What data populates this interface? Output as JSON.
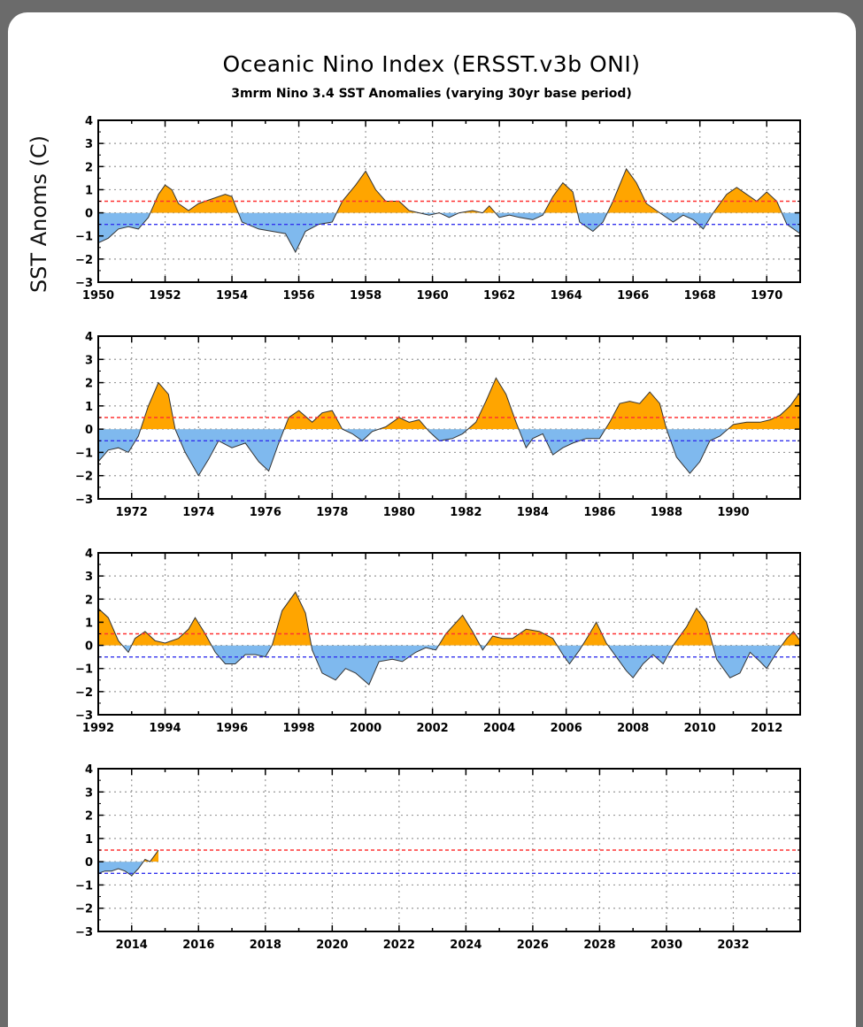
{
  "title": "Oceanic Nino Index (ERSST.v3b ONI)",
  "subtitle": "3mrm Nino 3.4 SST Anomalies (varying 30yr base period)",
  "ylabel": "SST Anoms (C)",
  "colors": {
    "positive_fill": "#ffa500",
    "negative_fill": "#7fb9ee",
    "upper_threshold": "#ff3333",
    "lower_threshold": "#3333ee",
    "line": "#333333",
    "grid": "#999999"
  },
  "chart_data": {
    "type": "area",
    "ylim": [
      -3,
      4
    ],
    "yticks": [
      -3,
      -2,
      -1,
      0,
      1,
      2,
      3,
      4
    ],
    "thresholds": [
      0.5,
      -0.5
    ],
    "grid": true,
    "panels": [
      {
        "xlim": [
          1950,
          1971
        ],
        "xticks": [
          "1950",
          "1952",
          "1954",
          "1956",
          "1958",
          "1960",
          "1962",
          "1964",
          "1966",
          "1968",
          "1970"
        ],
        "series": [
          [
            1950.0,
            -1.3
          ],
          [
            1950.3,
            -1.1
          ],
          [
            1950.6,
            -0.7
          ],
          [
            1950.9,
            -0.6
          ],
          [
            1951.2,
            -0.7
          ],
          [
            1951.5,
            -0.2
          ],
          [
            1951.8,
            0.8
          ],
          [
            1952.0,
            1.2
          ],
          [
            1952.2,
            1.0
          ],
          [
            1952.4,
            0.4
          ],
          [
            1952.7,
            0.1
          ],
          [
            1953.0,
            0.4
          ],
          [
            1953.4,
            0.6
          ],
          [
            1953.8,
            0.8
          ],
          [
            1954.0,
            0.7
          ],
          [
            1954.3,
            -0.4
          ],
          [
            1954.8,
            -0.7
          ],
          [
            1955.2,
            -0.8
          ],
          [
            1955.6,
            -0.9
          ],
          [
            1955.9,
            -1.7
          ],
          [
            1956.2,
            -0.8
          ],
          [
            1956.6,
            -0.5
          ],
          [
            1957.0,
            -0.4
          ],
          [
            1957.3,
            0.5
          ],
          [
            1957.7,
            1.2
          ],
          [
            1958.0,
            1.8
          ],
          [
            1958.3,
            1.0
          ],
          [
            1958.6,
            0.5
          ],
          [
            1959.0,
            0.5
          ],
          [
            1959.3,
            0.1
          ],
          [
            1959.6,
            0.0
          ],
          [
            1959.9,
            -0.1
          ],
          [
            1960.2,
            0.0
          ],
          [
            1960.5,
            -0.2
          ],
          [
            1960.8,
            0.0
          ],
          [
            1961.2,
            0.1
          ],
          [
            1961.5,
            0.0
          ],
          [
            1961.7,
            0.3
          ],
          [
            1962.0,
            -0.2
          ],
          [
            1962.3,
            -0.1
          ],
          [
            1962.6,
            -0.2
          ],
          [
            1963.0,
            -0.3
          ],
          [
            1963.3,
            -0.1
          ],
          [
            1963.6,
            0.7
          ],
          [
            1963.9,
            1.3
          ],
          [
            1964.2,
            0.9
          ],
          [
            1964.4,
            -0.4
          ],
          [
            1964.8,
            -0.8
          ],
          [
            1965.1,
            -0.4
          ],
          [
            1965.4,
            0.5
          ],
          [
            1965.8,
            1.9
          ],
          [
            1966.1,
            1.3
          ],
          [
            1966.4,
            0.4
          ],
          [
            1966.8,
            0.0
          ],
          [
            1967.2,
            -0.4
          ],
          [
            1967.5,
            -0.1
          ],
          [
            1967.8,
            -0.3
          ],
          [
            1968.1,
            -0.7
          ],
          [
            1968.4,
            0.0
          ],
          [
            1968.8,
            0.8
          ],
          [
            1969.1,
            1.1
          ],
          [
            1969.4,
            0.8
          ],
          [
            1969.7,
            0.5
          ],
          [
            1970.0,
            0.9
          ],
          [
            1970.3,
            0.5
          ],
          [
            1970.6,
            -0.5
          ],
          [
            1971.0,
            -0.9
          ]
        ]
      },
      {
        "xlim": [
          1971,
          1992
        ],
        "xticks": [
          "1972",
          "1974",
          "1976",
          "1978",
          "1980",
          "1982",
          "1984",
          "1986",
          "1988",
          "1990"
        ],
        "series": [
          [
            1971.0,
            -1.4
          ],
          [
            1971.3,
            -0.9
          ],
          [
            1971.6,
            -0.8
          ],
          [
            1971.9,
            -1.0
          ],
          [
            1972.2,
            -0.3
          ],
          [
            1972.5,
            1.0
          ],
          [
            1972.8,
            2.0
          ],
          [
            1973.1,
            1.5
          ],
          [
            1973.3,
            0.0
          ],
          [
            1973.6,
            -1.0
          ],
          [
            1974.0,
            -2.0
          ],
          [
            1974.3,
            -1.3
          ],
          [
            1974.6,
            -0.5
          ],
          [
            1975.0,
            -0.8
          ],
          [
            1975.4,
            -0.6
          ],
          [
            1975.8,
            -1.4
          ],
          [
            1976.1,
            -1.8
          ],
          [
            1976.4,
            -0.6
          ],
          [
            1976.7,
            0.5
          ],
          [
            1977.0,
            0.8
          ],
          [
            1977.4,
            0.3
          ],
          [
            1977.7,
            0.7
          ],
          [
            1978.0,
            0.8
          ],
          [
            1978.3,
            0.0
          ],
          [
            1978.6,
            -0.2
          ],
          [
            1978.9,
            -0.5
          ],
          [
            1979.2,
            -0.1
          ],
          [
            1979.6,
            0.1
          ],
          [
            1980.0,
            0.5
          ],
          [
            1980.3,
            0.3
          ],
          [
            1980.6,
            0.4
          ],
          [
            1980.9,
            -0.1
          ],
          [
            1981.2,
            -0.5
          ],
          [
            1981.6,
            -0.4
          ],
          [
            1981.9,
            -0.2
          ],
          [
            1982.3,
            0.3
          ],
          [
            1982.6,
            1.2
          ],
          [
            1982.9,
            2.2
          ],
          [
            1983.2,
            1.5
          ],
          [
            1983.5,
            0.3
          ],
          [
            1983.8,
            -0.8
          ],
          [
            1984.0,
            -0.4
          ],
          [
            1984.3,
            -0.2
          ],
          [
            1984.6,
            -1.1
          ],
          [
            1984.9,
            -0.8
          ],
          [
            1985.2,
            -0.6
          ],
          [
            1985.6,
            -0.4
          ],
          [
            1986.0,
            -0.4
          ],
          [
            1986.3,
            0.3
          ],
          [
            1986.6,
            1.1
          ],
          [
            1986.9,
            1.2
          ],
          [
            1987.2,
            1.1
          ],
          [
            1987.5,
            1.6
          ],
          [
            1987.8,
            1.1
          ],
          [
            1988.0,
            0.0
          ],
          [
            1988.3,
            -1.2
          ],
          [
            1988.7,
            -1.9
          ],
          [
            1989.0,
            -1.4
          ],
          [
            1989.3,
            -0.5
          ],
          [
            1989.6,
            -0.3
          ],
          [
            1990.0,
            0.2
          ],
          [
            1990.4,
            0.3
          ],
          [
            1990.8,
            0.3
          ],
          [
            1991.1,
            0.4
          ],
          [
            1991.4,
            0.6
          ],
          [
            1991.7,
            1.0
          ],
          [
            1992.0,
            1.6
          ]
        ]
      },
      {
        "xlim": [
          1992,
          2013
        ],
        "xticks": [
          "1992",
          "1994",
          "1996",
          "1998",
          "2000",
          "2002",
          "2004",
          "2006",
          "2008",
          "2010",
          "2012"
        ],
        "series": [
          [
            1992.0,
            1.6
          ],
          [
            1992.3,
            1.2
          ],
          [
            1992.6,
            0.2
          ],
          [
            1992.9,
            -0.3
          ],
          [
            1993.1,
            0.3
          ],
          [
            1993.4,
            0.6
          ],
          [
            1993.7,
            0.2
          ],
          [
            1994.0,
            0.1
          ],
          [
            1994.4,
            0.3
          ],
          [
            1994.7,
            0.7
          ],
          [
            1994.9,
            1.2
          ],
          [
            1995.2,
            0.5
          ],
          [
            1995.5,
            -0.3
          ],
          [
            1995.8,
            -0.8
          ],
          [
            1996.1,
            -0.8
          ],
          [
            1996.4,
            -0.4
          ],
          [
            1996.7,
            -0.4
          ],
          [
            1997.0,
            -0.5
          ],
          [
            1997.2,
            0.0
          ],
          [
            1997.5,
            1.5
          ],
          [
            1997.9,
            2.3
          ],
          [
            1998.2,
            1.4
          ],
          [
            1998.4,
            -0.2
          ],
          [
            1998.7,
            -1.2
          ],
          [
            1999.1,
            -1.5
          ],
          [
            1999.4,
            -1.0
          ],
          [
            1999.7,
            -1.2
          ],
          [
            2000.1,
            -1.7
          ],
          [
            2000.4,
            -0.7
          ],
          [
            2000.8,
            -0.6
          ],
          [
            2001.1,
            -0.7
          ],
          [
            2001.5,
            -0.3
          ],
          [
            2001.8,
            -0.1
          ],
          [
            2002.1,
            -0.2
          ],
          [
            2002.4,
            0.5
          ],
          [
            2002.9,
            1.3
          ],
          [
            2003.2,
            0.6
          ],
          [
            2003.5,
            -0.2
          ],
          [
            2003.8,
            0.4
          ],
          [
            2004.1,
            0.3
          ],
          [
            2004.4,
            0.3
          ],
          [
            2004.8,
            0.7
          ],
          [
            2005.2,
            0.6
          ],
          [
            2005.6,
            0.3
          ],
          [
            2005.9,
            -0.4
          ],
          [
            2006.1,
            -0.8
          ],
          [
            2006.4,
            -0.2
          ],
          [
            2006.7,
            0.5
          ],
          [
            2006.9,
            1.0
          ],
          [
            2007.2,
            0.1
          ],
          [
            2007.5,
            -0.5
          ],
          [
            2007.8,
            -1.1
          ],
          [
            2008.0,
            -1.4
          ],
          [
            2008.3,
            -0.8
          ],
          [
            2008.6,
            -0.4
          ],
          [
            2008.9,
            -0.8
          ],
          [
            2009.2,
            0.0
          ],
          [
            2009.6,
            0.8
          ],
          [
            2009.9,
            1.6
          ],
          [
            2010.2,
            1.0
          ],
          [
            2010.5,
            -0.6
          ],
          [
            2010.9,
            -1.4
          ],
          [
            2011.2,
            -1.2
          ],
          [
            2011.5,
            -0.3
          ],
          [
            2011.8,
            -0.7
          ],
          [
            2012.0,
            -1.0
          ],
          [
            2012.3,
            -0.3
          ],
          [
            2012.6,
            0.3
          ],
          [
            2012.8,
            0.6
          ],
          [
            2013.0,
            0.2
          ]
        ]
      },
      {
        "xlim": [
          2013,
          2034
        ],
        "xticks": [
          "2014",
          "2016",
          "2018",
          "2020",
          "2022",
          "2024",
          "2026",
          "2028",
          "2030",
          "2032"
        ],
        "series": [
          [
            2013.0,
            -0.5
          ],
          [
            2013.2,
            -0.4
          ],
          [
            2013.4,
            -0.4
          ],
          [
            2013.6,
            -0.3
          ],
          [
            2013.8,
            -0.4
          ],
          [
            2014.0,
            -0.6
          ],
          [
            2014.2,
            -0.3
          ],
          [
            2014.4,
            0.1
          ],
          [
            2014.55,
            0.0
          ],
          [
            2014.7,
            0.3
          ],
          [
            2014.8,
            0.5
          ]
        ]
      }
    ]
  }
}
